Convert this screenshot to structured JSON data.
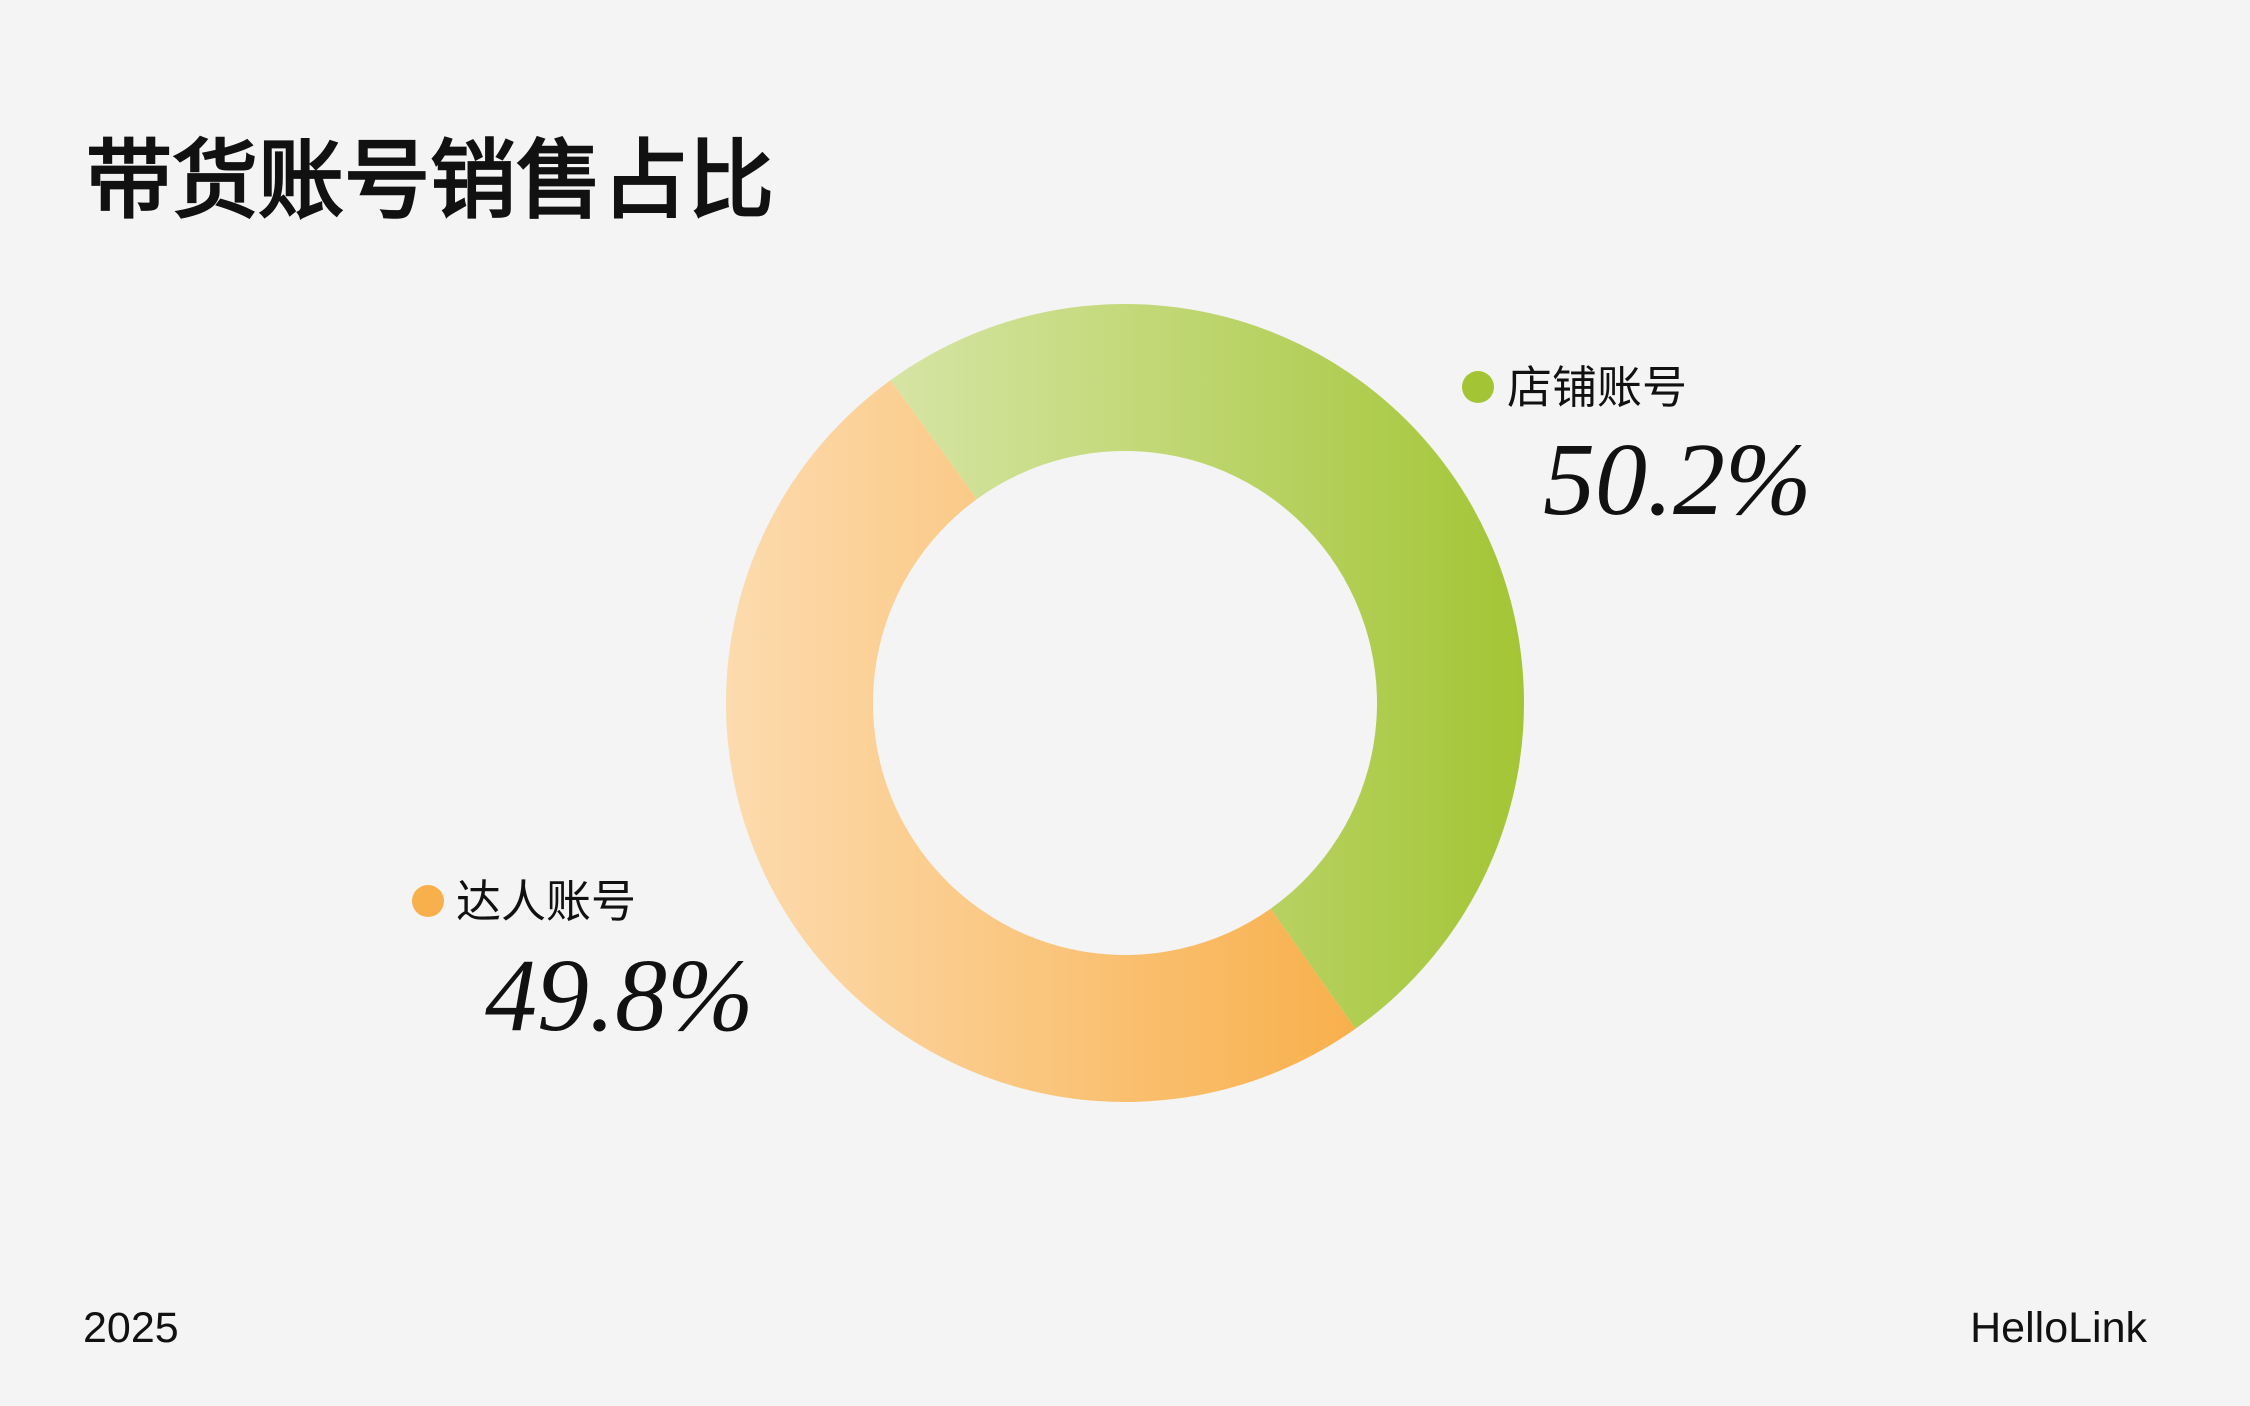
{
  "chart_data": {
    "type": "pie",
    "title": "带货账号销售占比",
    "categories": [
      "店铺账号",
      "达人账号"
    ],
    "values": [
      50.2,
      49.8
    ],
    "value_labels": [
      "50.2%",
      "49.8%"
    ],
    "colors": [
      "#a3c535",
      "#f8b04c"
    ],
    "donut": true
  },
  "footer": {
    "left": "2025",
    "right": "HelloLink"
  }
}
